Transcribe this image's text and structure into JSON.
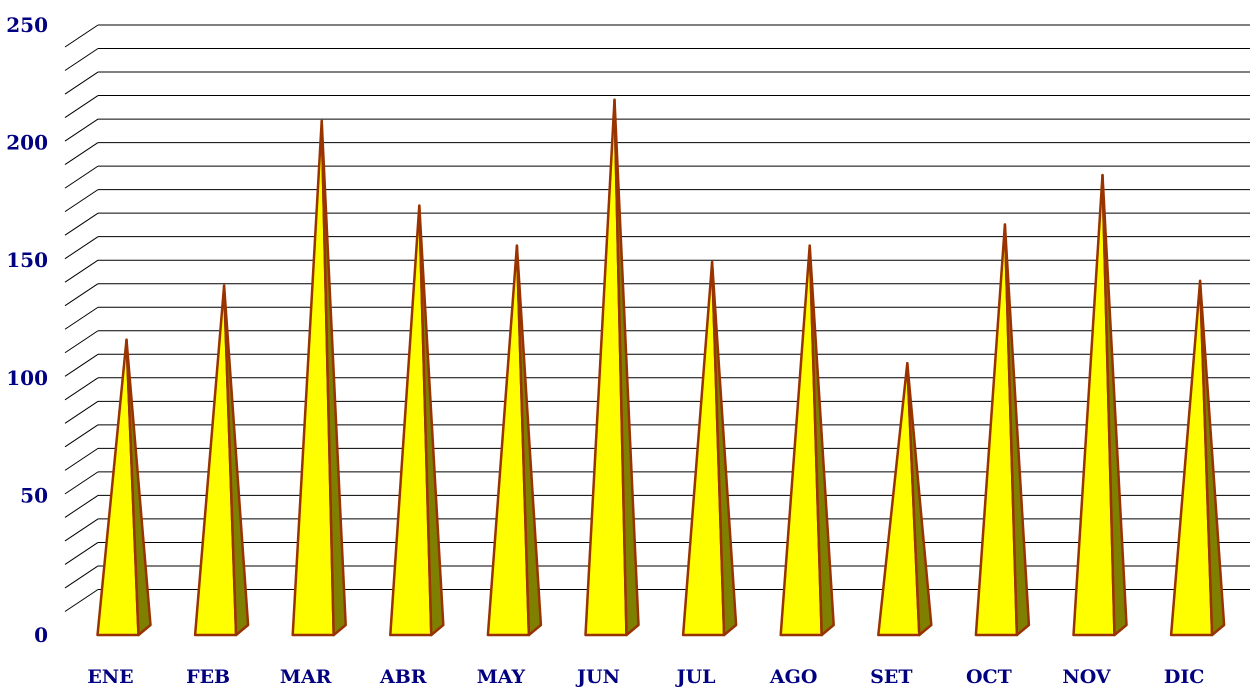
{
  "chart_data": {
    "type": "bar",
    "style": "3d-cone",
    "categories": [
      "ENE",
      "FEB",
      "MAR",
      "ABR",
      "MAY",
      "JUN",
      "JUL",
      "AGO",
      "SET",
      "OCT",
      "NOV",
      "DIC"
    ],
    "series": [
      {
        "values": [
          123,
          146,
          216,
          180,
          163,
          225,
          156,
          163,
          113,
          172,
          193,
          148
        ]
      }
    ],
    "yticks": [
      "0",
      "50",
      "100",
      "150",
      "200",
      "250"
    ],
    "ylim": [
      0,
      250
    ],
    "minor_grid_step": 10,
    "grid": true,
    "title": "",
    "xlabel": "",
    "ylabel": "",
    "colors": {
      "front": "#ffff00",
      "side": "#808000",
      "outline": "#993300",
      "grid": "#000000",
      "labels": "#000080"
    }
  }
}
